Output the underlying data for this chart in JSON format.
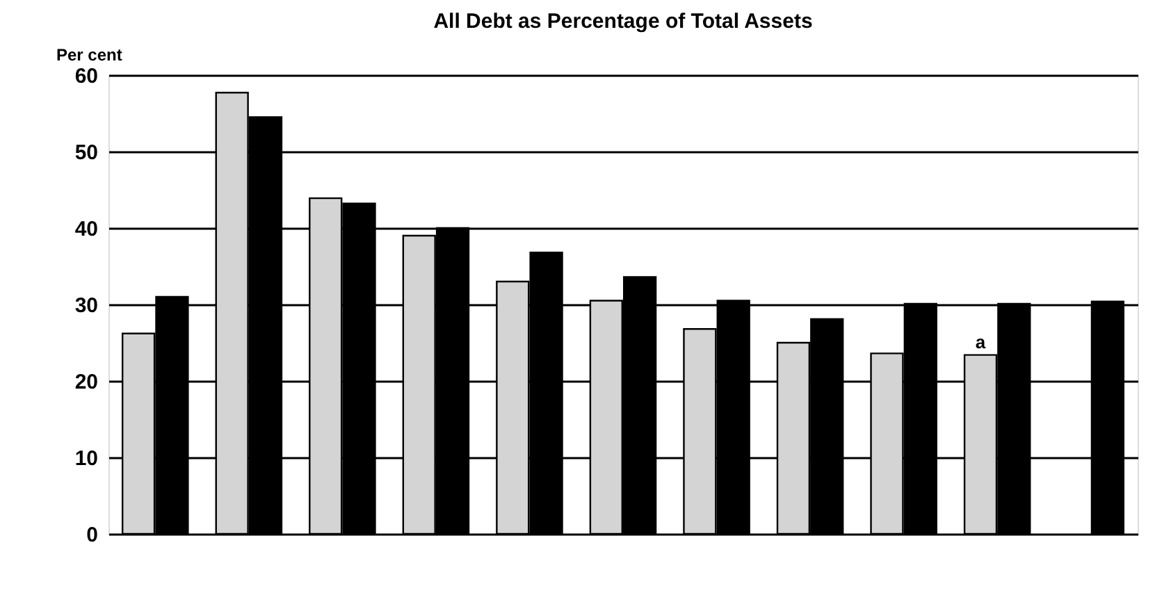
{
  "chart_data": {
    "type": "bar",
    "title": "All Debt as Percentage of Total Assets",
    "ylabel": "Per cent",
    "categories": [
      null,
      null,
      null,
      null,
      null,
      null,
      null,
      null,
      null,
      null,
      null
    ],
    "series": [
      {
        "color": "#d4d4d4",
        "values": [
          26.2,
          57.7,
          43.9,
          39.0,
          33.0,
          30.5,
          26.8,
          25.0,
          23.6,
          23.4,
          null
        ]
      },
      {
        "color": "#000000",
        "values": [
          31.0,
          54.5,
          43.2,
          40.0,
          36.8,
          33.6,
          30.5,
          28.1,
          30.1,
          30.1,
          30.4
        ]
      }
    ],
    "annotations": [
      {
        "text": "a",
        "y": 23.4
      }
    ],
    "ylim": [
      0,
      60
    ],
    "yticks": [
      0,
      10,
      20,
      30,
      40,
      50,
      60
    ],
    "grid": "y",
    "legend": false,
    "tick_labels": "y"
  }
}
